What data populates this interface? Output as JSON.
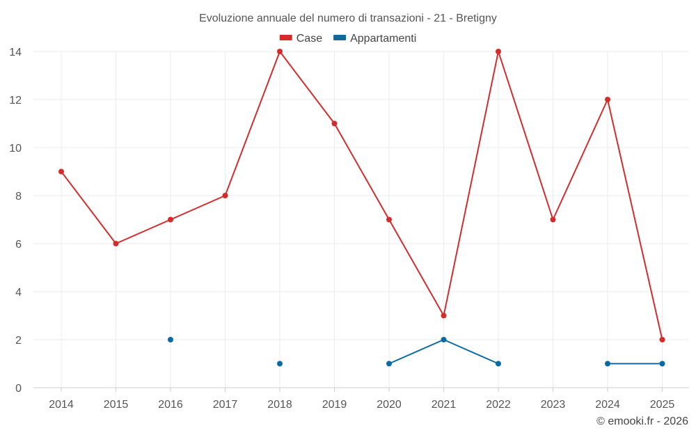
{
  "chart_data": {
    "type": "line",
    "title": "Evoluzione annuale del numero di transazioni - 21 - Bretigny",
    "x": [
      "2014",
      "2015",
      "2016",
      "2017",
      "2018",
      "2019",
      "2020",
      "2021",
      "2022",
      "2023",
      "2024",
      "2025"
    ],
    "ylim": [
      0,
      14
    ],
    "yticks": [
      0,
      2,
      4,
      6,
      8,
      10,
      12,
      14
    ],
    "grid": true,
    "legend_position": "top-center",
    "series": [
      {
        "name": "Case",
        "color": "#d42b2b",
        "values": [
          9,
          6,
          7,
          8,
          14,
          11,
          7,
          3,
          14,
          7,
          12,
          2
        ]
      },
      {
        "name": "Appartamenti",
        "color": "#0b6aa2",
        "values": [
          null,
          null,
          2,
          null,
          1,
          null,
          1,
          2,
          1,
          null,
          1,
          1
        ]
      }
    ]
  },
  "credit": "© emooki.fr - 2026"
}
